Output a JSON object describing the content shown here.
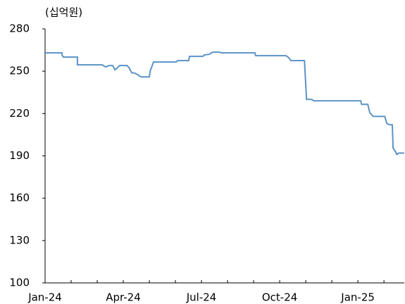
{
  "chart_data": {
    "type": "line",
    "y_unit_label": "(십억원)",
    "x": [
      0,
      0.65,
      0.65,
      0.7,
      1.24,
      1.24,
      2.19,
      2.32,
      2.46,
      2.59,
      2.68,
      2.78,
      2.86,
      3.14,
      3.22,
      3.32,
      3.46,
      3.68,
      4.0,
      4.03,
      4.16,
      5.03,
      5.08,
      5.51,
      5.54,
      6.05,
      6.11,
      6.3,
      6.43,
      6.7,
      6.76,
      8.05,
      8.08,
      9.24,
      9.35,
      9.43,
      9.95,
      10.03,
      10.22,
      10.32,
      12.11,
      12.14,
      12.38,
      12.46,
      12.59,
      13.03,
      13.11,
      13.22,
      13.32,
      13.35,
      13.46,
      13.49,
      13.57,
      13.78
    ],
    "series": [
      {
        "color": "#5b93c7",
        "values": [
          263,
          263,
          261.5,
          260,
          260,
          254.5,
          254.5,
          253,
          254,
          254,
          251,
          252.5,
          254,
          254,
          252.5,
          249,
          248.5,
          246,
          246,
          250,
          256.5,
          256.5,
          257.5,
          257.5,
          260.5,
          260.5,
          261.5,
          262,
          263.5,
          263.5,
          263,
          263,
          261,
          261,
          259.5,
          257.5,
          257.5,
          230,
          230,
          229,
          229,
          226.5,
          226.5,
          220.5,
          218,
          218,
          213,
          212,
          212,
          195.5,
          192.5,
          191,
          192,
          192
        ]
      }
    ],
    "xlim": [
      0,
      13.78
    ],
    "xticks": [
      {
        "value": 0,
        "label": "Jan-24"
      },
      {
        "value": 3,
        "label": "Apr-24"
      },
      {
        "value": 6,
        "label": "Jul-24"
      },
      {
        "value": 9,
        "label": "Oct-24"
      },
      {
        "value": 12,
        "label": "Jan-25"
      }
    ],
    "xminorticks": [
      1,
      2,
      4,
      5,
      7,
      8,
      10,
      11,
      13
    ],
    "ylim": [
      100,
      280
    ],
    "yticks": [
      100,
      130,
      160,
      190,
      220,
      250,
      280
    ],
    "grid": false
  }
}
